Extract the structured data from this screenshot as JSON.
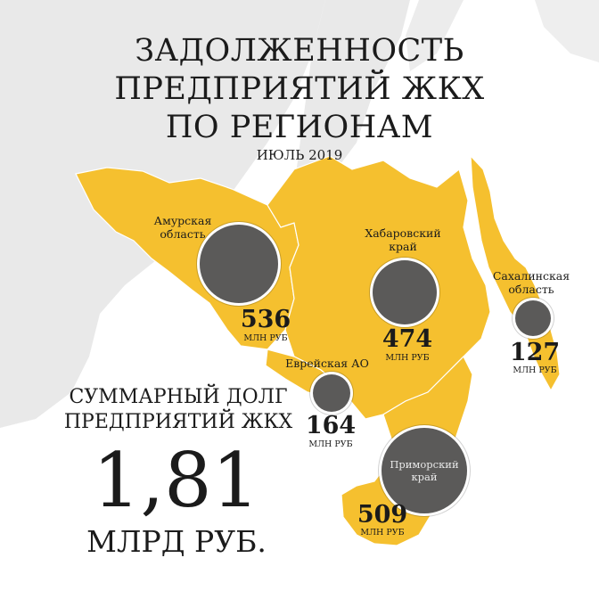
{
  "title": {
    "line1": "ЗАДОЛЖЕННОСТЬ",
    "line2": "ПРЕДПРИЯТИЙ ЖКХ",
    "line3": "ПО РЕГИОНАМ"
  },
  "subtitle": "ИЮЛЬ 2019",
  "colors": {
    "region_fill": "#f5c02f",
    "bubble": "#5b5a59",
    "neighbor_land": "#e9e9e9",
    "sea": "#ffffff"
  },
  "regions": [
    {
      "name": "Амурская область",
      "label_line1": "Амурская",
      "label_line2": "область",
      "value": "536",
      "unit": "МЛН РУБ"
    },
    {
      "name": "Хабаровский край",
      "label_line1": "Хабаровский",
      "label_line2": "край",
      "value": "474",
      "unit": "МЛН РУБ"
    },
    {
      "name": "Сахалинская область",
      "label_line1": "Сахалинская",
      "label_line2": "область",
      "value": "127",
      "unit": "МЛН РУБ"
    },
    {
      "name": "Еврейская АО",
      "label_line1": "Еврейская АО",
      "label_line2": "",
      "value": "164",
      "unit": "МЛН РУБ"
    },
    {
      "name": "Приморский край",
      "label_line1": "Приморский",
      "label_line2": "край",
      "value": "509",
      "unit": "МЛН РУБ"
    }
  ],
  "total": {
    "label_line1": "СУММАРНЫЙ ДОЛГ",
    "label_line2": "ПРЕДПРИЯТИЙ ЖКХ",
    "value": "1,81",
    "unit": "МЛРД РУБ."
  }
}
